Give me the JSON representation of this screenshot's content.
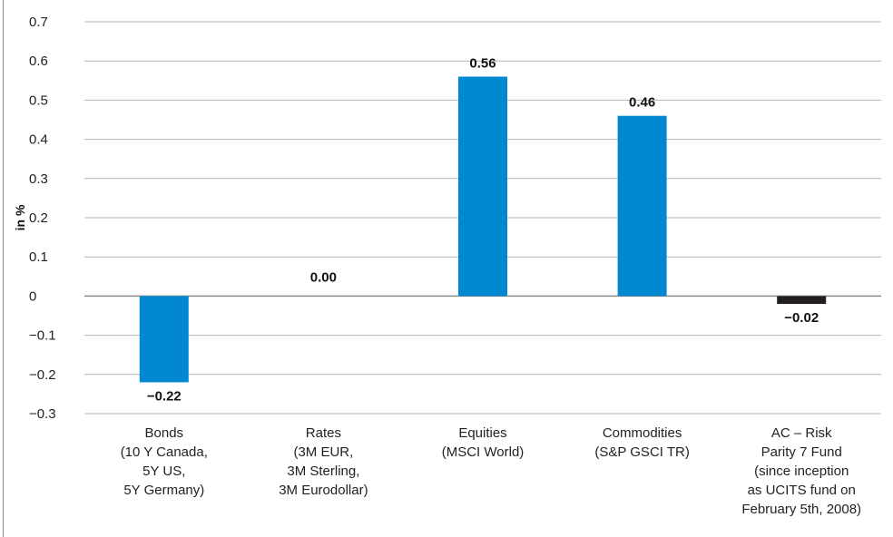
{
  "chart_data": {
    "type": "bar",
    "ylabel": "in %",
    "xlabel": "",
    "ylim": [
      -0.3,
      0.7
    ],
    "yticks": [
      0.7,
      0.6,
      0.5,
      0.4,
      0.3,
      0.2,
      0.1,
      0,
      -0.1,
      -0.2,
      -0.3
    ],
    "ytick_labels": [
      "0.7",
      "0.6",
      "0.5",
      "0.4",
      "0.3",
      "0.2",
      "0.1",
      "0",
      "−0.1",
      "−0.2",
      "−0.3"
    ],
    "grid": true,
    "legend": "none",
    "categories": [
      [
        "Bonds",
        "(10 Y Canada,",
        "5Y US,",
        "5Y Germany)"
      ],
      [
        "Rates",
        "(3M EUR,",
        "3M Sterling,",
        "3M Eurodollar)"
      ],
      [
        "Equities",
        "(MSCI World)"
      ],
      [
        "Commodities",
        "(S&P GSCI TR)"
      ],
      [
        "AC – Risk",
        "Parity 7 Fund",
        "(since inception",
        "as UCITS fund on",
        "February 5th, 2008)"
      ]
    ],
    "values": [
      -0.22,
      0.0,
      0.56,
      0.46,
      -0.02
    ],
    "value_labels": [
      "−0.22",
      "0.00",
      "0.56",
      "0.46",
      "−0.02"
    ],
    "bar_colors": [
      "#0288d1",
      "#0288d1",
      "#0288d1",
      "#0288d1",
      "#231f20"
    ]
  },
  "colors": {
    "bar": "#0288d1",
    "fund_bar": "#231f20",
    "grid": "#b5b5b5"
  }
}
